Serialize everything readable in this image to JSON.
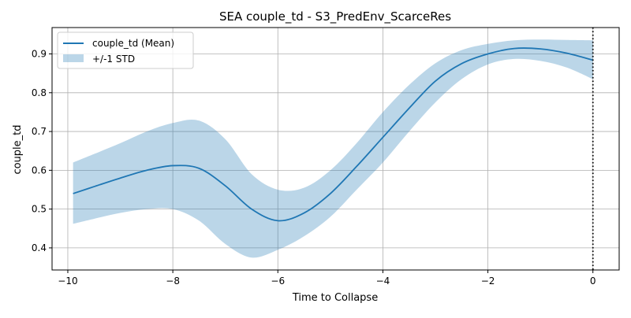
{
  "chart_data": {
    "type": "line",
    "title": "SEA couple_td - S3_PredEnv_ScarceRes",
    "xlabel": "Time to Collapse",
    "ylabel": "couple_td",
    "xlim": [
      -10.3,
      0.5
    ],
    "ylim": [
      0.343,
      0.968
    ],
    "xticks": [
      -10,
      -8,
      -6,
      -4,
      -2,
      0
    ],
    "xtick_labels": [
      "−10",
      "−8",
      "−6",
      "−4",
      "−2",
      "0"
    ],
    "yticks": [
      0.4,
      0.5,
      0.6,
      0.7,
      0.8,
      0.9
    ],
    "ytick_labels": [
      "0.4",
      "0.5",
      "0.6",
      "0.7",
      "0.8",
      "0.9"
    ],
    "grid": true,
    "legend_position": "top-left",
    "vline": {
      "x": 0,
      "style": "dotted",
      "color": "#000000"
    },
    "series": [
      {
        "name": "couple_td (Mean)",
        "color": "#1f77b4",
        "x": [
          -9.9,
          -9.5,
          -9.0,
          -8.5,
          -8.0,
          -7.5,
          -7.0,
          -6.5,
          -6.0,
          -5.5,
          -5.0,
          -4.5,
          -4.0,
          -3.5,
          -3.0,
          -2.5,
          -2.0,
          -1.5,
          -1.0,
          -0.5,
          0.0
        ],
        "mean": [
          0.54,
          0.558,
          0.58,
          0.6,
          0.612,
          0.605,
          0.56,
          0.5,
          0.47,
          0.49,
          0.54,
          0.61,
          0.685,
          0.76,
          0.83,
          0.875,
          0.9,
          0.914,
          0.913,
          0.902,
          0.884
        ],
        "lower": [
          0.462,
          0.475,
          0.49,
          0.5,
          0.5,
          0.47,
          0.41,
          0.375,
          0.395,
          0.43,
          0.48,
          0.55,
          0.62,
          0.7,
          0.775,
          0.835,
          0.873,
          0.887,
          0.882,
          0.865,
          0.835
        ],
        "upper": [
          0.62,
          0.642,
          0.67,
          0.7,
          0.722,
          0.728,
          0.68,
          0.59,
          0.55,
          0.555,
          0.6,
          0.67,
          0.75,
          0.82,
          0.876,
          0.91,
          0.926,
          0.935,
          0.937,
          0.936,
          0.935
        ]
      }
    ],
    "legend": [
      {
        "label": "couple_td (Mean)",
        "kind": "line",
        "color": "#1f77b4"
      },
      {
        "label": "+/-1 STD",
        "kind": "band",
        "color": "#1f77b4"
      }
    ]
  }
}
